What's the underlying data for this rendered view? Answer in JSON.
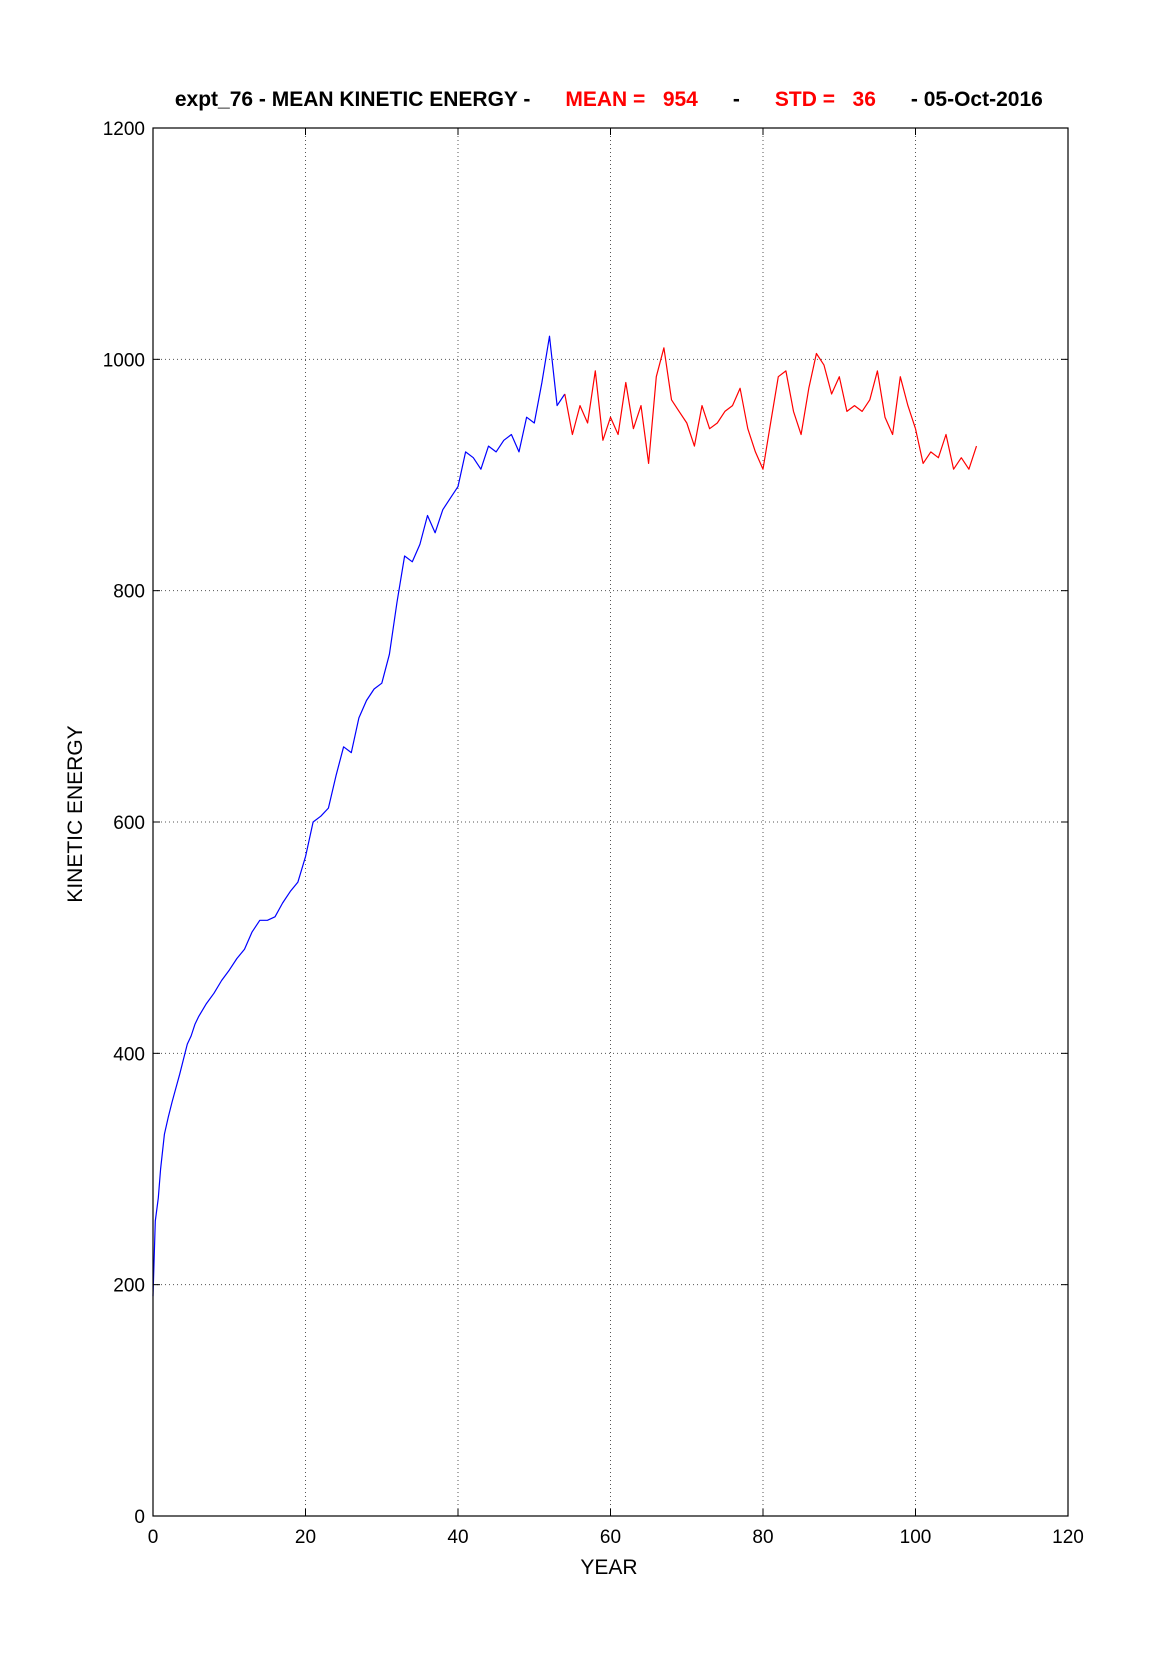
{
  "chart_data": {
    "type": "line",
    "title_parts": [
      {
        "text": "expt_76 - MEAN KINETIC ENERGY - ",
        "color": "#000000"
      },
      {
        "text": "MEAN =   954",
        "color": "#ff0000"
      },
      {
        "text": " - ",
        "color": "#000000"
      },
      {
        "text": "STD =   36",
        "color": "#ff0000"
      },
      {
        "text": " - 05-Oct-2016",
        "color": "#000000"
      }
    ],
    "xlabel": "YEAR",
    "ylabel": "KINETIC ENERGY",
    "xlim": [
      0,
      120
    ],
    "ylim": [
      0,
      1200
    ],
    "xticks": [
      0,
      20,
      40,
      60,
      80,
      100,
      120
    ],
    "yticks": [
      0,
      200,
      400,
      600,
      800,
      1000,
      1200
    ],
    "grid": true,
    "series": [
      {
        "color": "#0000ff",
        "x": [
          0,
          0.3,
          0.7,
          1,
          1.5,
          2,
          2.5,
          3,
          3.5,
          4,
          4.5,
          5,
          5.5,
          6,
          7,
          8,
          9,
          10,
          11,
          12,
          13,
          14,
          15,
          16,
          17,
          18,
          19,
          20,
          21,
          22,
          23,
          24,
          25,
          26,
          27,
          28,
          29,
          30,
          31,
          32,
          33,
          34,
          35,
          36,
          37,
          38,
          39,
          40,
          41,
          42,
          43,
          44,
          45,
          46,
          47,
          48,
          49,
          50,
          51,
          52,
          53,
          54
        ],
        "y": [
          190,
          255,
          275,
          300,
          330,
          345,
          358,
          370,
          382,
          395,
          408,
          415,
          425,
          432,
          443,
          452,
          463,
          472,
          482,
          490,
          505,
          515,
          515,
          518,
          530,
          540,
          548,
          570,
          600,
          605,
          612,
          640,
          665,
          660,
          690,
          705,
          715,
          720,
          745,
          790,
          830,
          825,
          840,
          865,
          850,
          870,
          880,
          890,
          920,
          915,
          905,
          925,
          920,
          930,
          935,
          920,
          950,
          945,
          980,
          1020,
          960,
          970
        ]
      },
      {
        "color": "#ff0000",
        "x": [
          54,
          55,
          56,
          57,
          58,
          59,
          60,
          61,
          62,
          63,
          64,
          65,
          66,
          67,
          68,
          69,
          70,
          71,
          72,
          73,
          74,
          75,
          76,
          77,
          78,
          79,
          80,
          81,
          82,
          83,
          84,
          85,
          86,
          87,
          88,
          89,
          90,
          91,
          92,
          93,
          94,
          95,
          96,
          97,
          98,
          99,
          100,
          101,
          102,
          103,
          104,
          105,
          106,
          107,
          108
        ],
        "y": [
          970,
          935,
          960,
          945,
          990,
          930,
          950,
          935,
          980,
          940,
          960,
          910,
          985,
          1010,
          965,
          955,
          945,
          925,
          960,
          940,
          945,
          955,
          960,
          975,
          940,
          920,
          905,
          945,
          985,
          990,
          955,
          935,
          975,
          1005,
          995,
          970,
          985,
          955,
          960,
          955,
          965,
          990,
          950,
          935,
          985,
          960,
          940,
          910,
          920,
          915,
          935,
          905,
          915,
          905,
          925
        ]
      }
    ]
  }
}
